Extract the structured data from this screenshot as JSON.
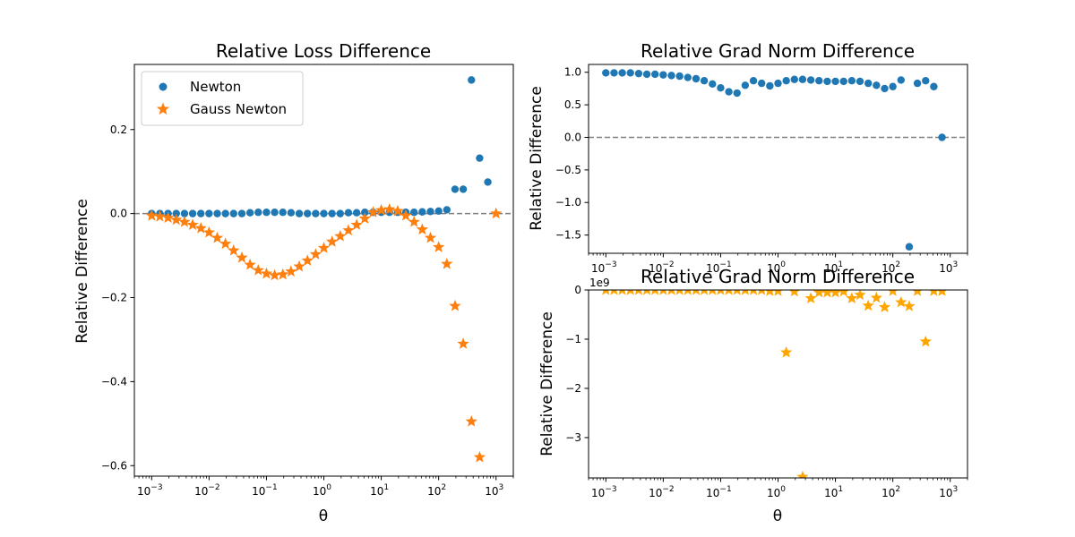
{
  "colors": {
    "newton": "#1f77b4",
    "gauss_newton": "#ff7f0e",
    "gauss_newton_grad": "#ffa500",
    "zero_line": "#808080"
  },
  "chart_data": [
    {
      "type": "scatter",
      "title": "Relative Loss Difference",
      "xlabel": "θ",
      "ylabel": "Relative Difference",
      "xscale": "log",
      "xlim": [
        0.0005,
        2000
      ],
      "ylim": [
        -0.625,
        0.355
      ],
      "xticks": [
        {
          "value": 0.001,
          "label": "10",
          "exp": "−3"
        },
        {
          "value": 0.01,
          "label": "10",
          "exp": "−2"
        },
        {
          "value": 0.1,
          "label": "10",
          "exp": "−1"
        },
        {
          "value": 1,
          "label": "10",
          "exp": "0"
        },
        {
          "value": 10,
          "label": "10",
          "exp": "1"
        },
        {
          "value": 100,
          "label": "10",
          "exp": "2"
        },
        {
          "value": 1000,
          "label": "10",
          "exp": "3"
        }
      ],
      "yticks": [
        {
          "value": 0.2,
          "label": "0.2"
        },
        {
          "value": 0.0,
          "label": "0.0"
        },
        {
          "value": -0.2,
          "label": "−0.2"
        },
        {
          "value": -0.4,
          "label": "−0.4"
        },
        {
          "value": -0.6,
          "label": "−0.6"
        }
      ],
      "zero_line": true,
      "legend": {
        "position": "upper-left",
        "entries": [
          "Newton",
          "Gauss Newton"
        ]
      },
      "series": [
        {
          "name": "Newton",
          "marker": "circle",
          "color_key": "newton",
          "points": [
            [
              0.001,
              0.0
            ],
            [
              0.00139,
              0.0
            ],
            [
              0.00193,
              0.0
            ],
            [
              0.00268,
              0.0
            ],
            [
              0.00373,
              0.0
            ],
            [
              0.00518,
              0.0
            ],
            [
              0.0072,
              0.0
            ],
            [
              0.01,
              0.0
            ],
            [
              0.0139,
              0.0
            ],
            [
              0.0193,
              0.0
            ],
            [
              0.0268,
              0.0
            ],
            [
              0.0373,
              0.0
            ],
            [
              0.0518,
              0.002
            ],
            [
              0.072,
              0.003
            ],
            [
              0.1,
              0.003
            ],
            [
              0.139,
              0.003
            ],
            [
              0.193,
              0.003
            ],
            [
              0.268,
              0.002
            ],
            [
              0.373,
              0.0
            ],
            [
              0.518,
              0.0
            ],
            [
              0.72,
              0.0
            ],
            [
              1.0,
              0.0
            ],
            [
              1.39,
              0.0
            ],
            [
              1.93,
              0.0
            ],
            [
              2.68,
              0.002
            ],
            [
              3.73,
              0.002
            ],
            [
              5.18,
              0.003
            ],
            [
              7.2,
              0.003
            ],
            [
              10,
              0.003
            ],
            [
              13.9,
              0.003
            ],
            [
              19.3,
              0.003
            ],
            [
              26.8,
              0.003
            ],
            [
              37.3,
              0.003
            ],
            [
              51.8,
              0.004
            ],
            [
              72,
              0.005
            ],
            [
              100,
              0.006
            ],
            [
              139,
              0.009
            ],
            [
              193,
              0.058
            ],
            [
              268,
              0.058
            ],
            [
              373,
              0.318
            ],
            [
              518,
              0.132
            ],
            [
              720,
              0.075
            ]
          ]
        },
        {
          "name": "Gauss Newton",
          "marker": "star",
          "color_key": "gauss_newton",
          "points": [
            [
              0.001,
              -0.005
            ],
            [
              0.00139,
              -0.007
            ],
            [
              0.00193,
              -0.01
            ],
            [
              0.00268,
              -0.015
            ],
            [
              0.00373,
              -0.02
            ],
            [
              0.00518,
              -0.027
            ],
            [
              0.0072,
              -0.035
            ],
            [
              0.01,
              -0.045
            ],
            [
              0.0139,
              -0.058
            ],
            [
              0.0193,
              -0.072
            ],
            [
              0.0268,
              -0.088
            ],
            [
              0.0373,
              -0.105
            ],
            [
              0.0518,
              -0.122
            ],
            [
              0.072,
              -0.135
            ],
            [
              0.1,
              -0.143
            ],
            [
              0.139,
              -0.147
            ],
            [
              0.193,
              -0.145
            ],
            [
              0.268,
              -0.138
            ],
            [
              0.373,
              -0.126
            ],
            [
              0.518,
              -0.112
            ],
            [
              0.72,
              -0.097
            ],
            [
              1.0,
              -0.082
            ],
            [
              1.39,
              -0.067
            ],
            [
              1.93,
              -0.054
            ],
            [
              2.68,
              -0.04
            ],
            [
              3.73,
              -0.027
            ],
            [
              5.18,
              -0.012
            ],
            [
              7.2,
              0.003
            ],
            [
              10,
              0.008
            ],
            [
              13.9,
              0.01
            ],
            [
              19.3,
              0.006
            ],
            [
              26.8,
              -0.005
            ],
            [
              37.3,
              -0.02
            ],
            [
              51.8,
              -0.038
            ],
            [
              72,
              -0.058
            ],
            [
              100,
              -0.08
            ],
            [
              139,
              -0.12
            ],
            [
              193,
              -0.22
            ],
            [
              268,
              -0.31
            ],
            [
              373,
              -0.495
            ],
            [
              518,
              -0.58
            ],
            [
              1000,
              0.0
            ]
          ]
        }
      ]
    },
    {
      "type": "scatter",
      "title": "Relative Grad Norm Difference",
      "xlabel": "",
      "ylabel": "Relative Difference",
      "xscale": "log",
      "xlim": [
        0.0005,
        2000
      ],
      "ylim": [
        -1.78,
        1.12
      ],
      "xticks": [
        {
          "value": 0.001,
          "label": "10",
          "exp": "−3"
        },
        {
          "value": 0.01,
          "label": "10",
          "exp": "−2"
        },
        {
          "value": 0.1,
          "label": "10",
          "exp": "−1"
        },
        {
          "value": 1,
          "label": "10",
          "exp": "0"
        },
        {
          "value": 10,
          "label": "10",
          "exp": "1"
        },
        {
          "value": 100,
          "label": "10",
          "exp": "2"
        },
        {
          "value": 1000,
          "label": "10",
          "exp": "3"
        }
      ],
      "yticks": [
        {
          "value": 1.0,
          "label": "1.0"
        },
        {
          "value": 0.5,
          "label": "0.5"
        },
        {
          "value": 0.0,
          "label": "0.0"
        },
        {
          "value": -0.5,
          "label": "−0.5"
        },
        {
          "value": -1.0,
          "label": "−1.0"
        },
        {
          "value": -1.5,
          "label": "−1.5"
        }
      ],
      "zero_line": true,
      "series": [
        {
          "marker": "circle",
          "color_key": "newton",
          "points": [
            [
              0.001,
              0.99
            ],
            [
              0.00139,
              0.99
            ],
            [
              0.00193,
              0.99
            ],
            [
              0.00268,
              0.99
            ],
            [
              0.00373,
              0.98
            ],
            [
              0.00518,
              0.97
            ],
            [
              0.0072,
              0.97
            ],
            [
              0.01,
              0.96
            ],
            [
              0.0139,
              0.95
            ],
            [
              0.0193,
              0.94
            ],
            [
              0.0268,
              0.92
            ],
            [
              0.0373,
              0.9
            ],
            [
              0.0518,
              0.87
            ],
            [
              0.072,
              0.82
            ],
            [
              0.1,
              0.76
            ],
            [
              0.139,
              0.7
            ],
            [
              0.193,
              0.68
            ],
            [
              0.268,
              0.8
            ],
            [
              0.373,
              0.87
            ],
            [
              0.518,
              0.83
            ],
            [
              0.72,
              0.79
            ],
            [
              1.0,
              0.83
            ],
            [
              1.39,
              0.87
            ],
            [
              1.93,
              0.89
            ],
            [
              2.68,
              0.89
            ],
            [
              3.73,
              0.88
            ],
            [
              5.18,
              0.87
            ],
            [
              7.2,
              0.86
            ],
            [
              10,
              0.86
            ],
            [
              13.9,
              0.86
            ],
            [
              19.3,
              0.87
            ],
            [
              26.8,
              0.86
            ],
            [
              37.3,
              0.83
            ],
            [
              51.8,
              0.8
            ],
            [
              72,
              0.75
            ],
            [
              100,
              0.78
            ],
            [
              139,
              0.88
            ],
            [
              193,
              -1.68
            ],
            [
              268,
              0.83
            ],
            [
              373,
              0.87
            ],
            [
              518,
              0.78
            ],
            [
              720,
              0.0
            ]
          ]
        }
      ]
    },
    {
      "type": "scatter",
      "title": "Relative Grad Norm Difference",
      "xlabel": "θ",
      "ylabel": "Relative Difference",
      "offset_label": "1e9",
      "xscale": "log",
      "xlim": [
        0.0005,
        2000
      ],
      "ylim": [
        -3.82,
        0.0
      ],
      "xticks": [
        {
          "value": 0.001,
          "label": "10",
          "exp": "−3"
        },
        {
          "value": 0.01,
          "label": "10",
          "exp": "−2"
        },
        {
          "value": 0.1,
          "label": "10",
          "exp": "−1"
        },
        {
          "value": 1,
          "label": "10",
          "exp": "0"
        },
        {
          "value": 10,
          "label": "10",
          "exp": "1"
        },
        {
          "value": 100,
          "label": "10",
          "exp": "2"
        },
        {
          "value": 1000,
          "label": "10",
          "exp": "3"
        }
      ],
      "yticks": [
        {
          "value": 0,
          "label": "0"
        },
        {
          "value": -1,
          "label": "−1"
        },
        {
          "value": -2,
          "label": "−2"
        },
        {
          "value": -3,
          "label": "−3"
        }
      ],
      "zero_line": false,
      "series": [
        {
          "marker": "star",
          "color_key": "gauss_newton_grad",
          "points": [
            [
              0.001,
              0.0
            ],
            [
              0.00139,
              0.0
            ],
            [
              0.00193,
              0.0
            ],
            [
              0.00268,
              0.0
            ],
            [
              0.00373,
              0.0
            ],
            [
              0.00518,
              0.0
            ],
            [
              0.0072,
              0.0
            ],
            [
              0.01,
              0.0
            ],
            [
              0.0139,
              0.0
            ],
            [
              0.0193,
              0.0
            ],
            [
              0.0268,
              0.0
            ],
            [
              0.0373,
              0.0
            ],
            [
              0.0518,
              0.0
            ],
            [
              0.072,
              0.0
            ],
            [
              0.1,
              0.0
            ],
            [
              0.139,
              0.0
            ],
            [
              0.193,
              0.0
            ],
            [
              0.268,
              0.0
            ],
            [
              0.373,
              0.0
            ],
            [
              0.518,
              0.0
            ],
            [
              0.72,
              -0.02
            ],
            [
              1.0,
              -0.02
            ],
            [
              1.39,
              -1.27
            ],
            [
              1.93,
              -0.03
            ],
            [
              2.68,
              -3.8
            ],
            [
              3.73,
              -0.17
            ],
            [
              5.18,
              -0.05
            ],
            [
              7.2,
              -0.05
            ],
            [
              10,
              -0.05
            ],
            [
              13.9,
              -0.03
            ],
            [
              19.3,
              -0.17
            ],
            [
              26.8,
              -0.1
            ],
            [
              37.3,
              -0.32
            ],
            [
              51.8,
              -0.16
            ],
            [
              72,
              -0.35
            ],
            [
              100,
              -0.02
            ],
            [
              139,
              -0.25
            ],
            [
              193,
              -0.33
            ],
            [
              268,
              -0.02
            ],
            [
              373,
              -1.05
            ],
            [
              518,
              -0.02
            ],
            [
              720,
              -0.02
            ]
          ]
        }
      ]
    }
  ]
}
